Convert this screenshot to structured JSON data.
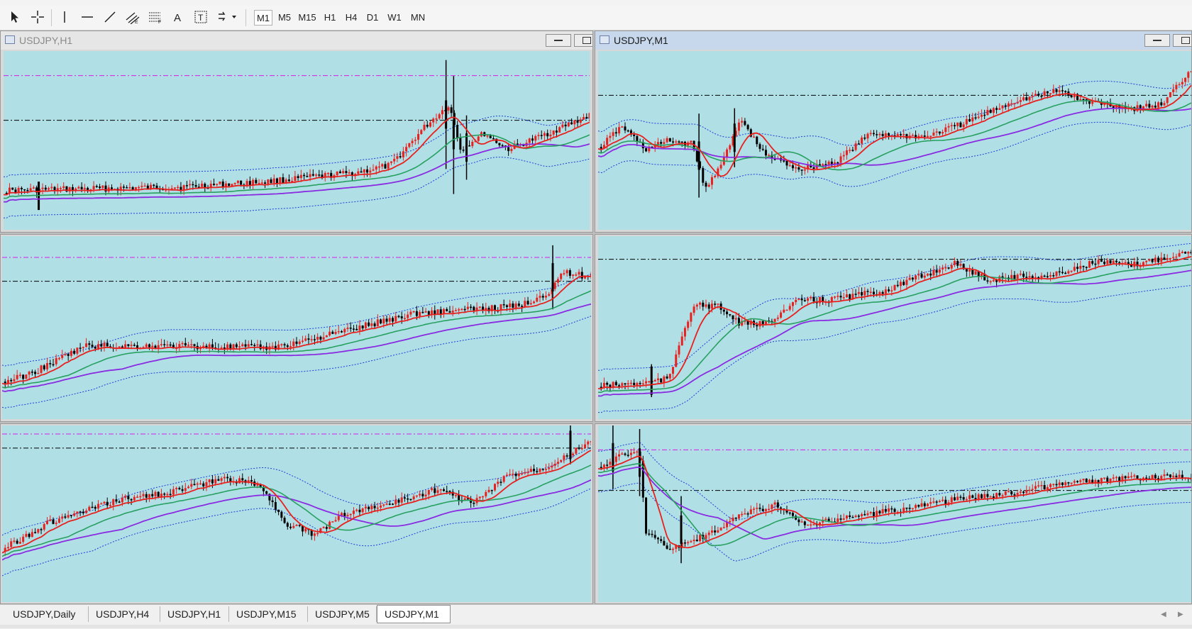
{
  "toolbar": {
    "tools": [
      "cursor-icon",
      "crosshair-icon",
      "vertical-line-icon",
      "horizontal-line-icon",
      "trendline-icon",
      "equidistant-channel-icon",
      "fibonacci-icon",
      "text-icon",
      "text-label-icon",
      "arrows-icon"
    ],
    "timeframes": [
      {
        "label": "M1",
        "active": true
      },
      {
        "label": "M5",
        "active": false
      },
      {
        "label": "M15",
        "active": false
      },
      {
        "label": "H1",
        "active": false
      },
      {
        "label": "H4",
        "active": false
      },
      {
        "label": "D1",
        "active": false
      },
      {
        "label": "W1",
        "active": false
      },
      {
        "label": "MN",
        "active": false
      }
    ]
  },
  "windows": [
    {
      "id": "w1",
      "title": "USDJPY,H1",
      "active": false
    },
    {
      "id": "w2",
      "title": "USDJPY,M1",
      "active": true
    },
    {
      "id": "w3",
      "title": "",
      "active": false
    },
    {
      "id": "w4",
      "title": "",
      "active": false
    },
    {
      "id": "w5",
      "title": "",
      "active": false
    },
    {
      "id": "w6",
      "title": "",
      "active": false
    }
  ],
  "colors": {
    "chart_bg": "#b0e0e6",
    "ma_fast": "#e8201e",
    "ma_mid": "#27a060",
    "ma_slow": "#8a2be2",
    "band": "#1d3ed8",
    "hline_black": "#000000",
    "hline_magenta": "#d21ee8"
  },
  "tabs": [
    {
      "label": "USDJPY,Daily",
      "active": false
    },
    {
      "label": "USDJPY,H4",
      "active": false
    },
    {
      "label": "USDJPY,H1",
      "active": false
    },
    {
      "label": "USDJPY,M15",
      "active": false
    },
    {
      "label": "USDJPY,M5",
      "active": false
    },
    {
      "label": "USDJPY,M1",
      "active": true
    }
  ]
}
